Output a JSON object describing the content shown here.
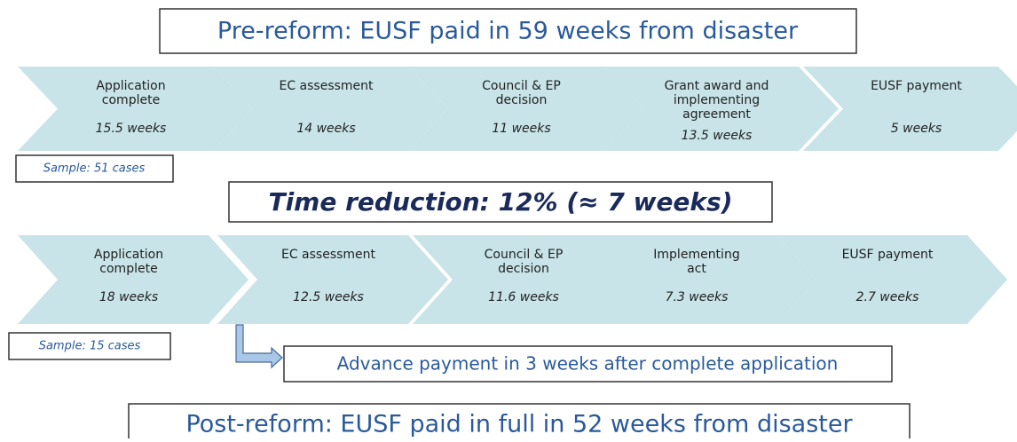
{
  "header": {
    "title": "Pre-reform: EUSF paid in 59 weeks from disaster"
  },
  "pre_reform": {
    "steps": [
      {
        "label": [
          "Application",
          "complete"
        ],
        "weeks": "15.5 weeks"
      },
      {
        "label": [
          "EC assessment"
        ],
        "weeks": "14 weeks"
      },
      {
        "label": [
          "Council & EP",
          "decision"
        ],
        "weeks": "11 weeks"
      },
      {
        "label": [
          "Grant award and",
          "implementing",
          "agreement"
        ],
        "weeks": "13.5 weeks"
      },
      {
        "label": [
          "EUSF payment"
        ],
        "weeks": "5 weeks"
      }
    ],
    "sample": "Sample:  51 cases"
  },
  "reduction": "Time reduction: 12% (≈ 7 weeks)",
  "post_reform": {
    "steps": [
      {
        "label": [
          "Application",
          "complete"
        ],
        "weeks": "18 weeks"
      },
      {
        "label": [
          "EC assessment"
        ],
        "weeks": "12.5 weeks"
      },
      {
        "label": [
          "Council & EP",
          "decision"
        ],
        "weeks": "11.6 weeks"
      },
      {
        "label": [
          "Implementing",
          "act"
        ],
        "weeks": "7.3 weeks"
      },
      {
        "label": [
          "EUSF payment"
        ],
        "weeks": "2.7 weeks"
      }
    ],
    "sample": "Sample:  15 cases"
  },
  "advance": "Advance payment in  3 weeks after complete application",
  "footer": {
    "title": "Post-reform: EUSF paid in full in 52 weeks from disaster"
  }
}
